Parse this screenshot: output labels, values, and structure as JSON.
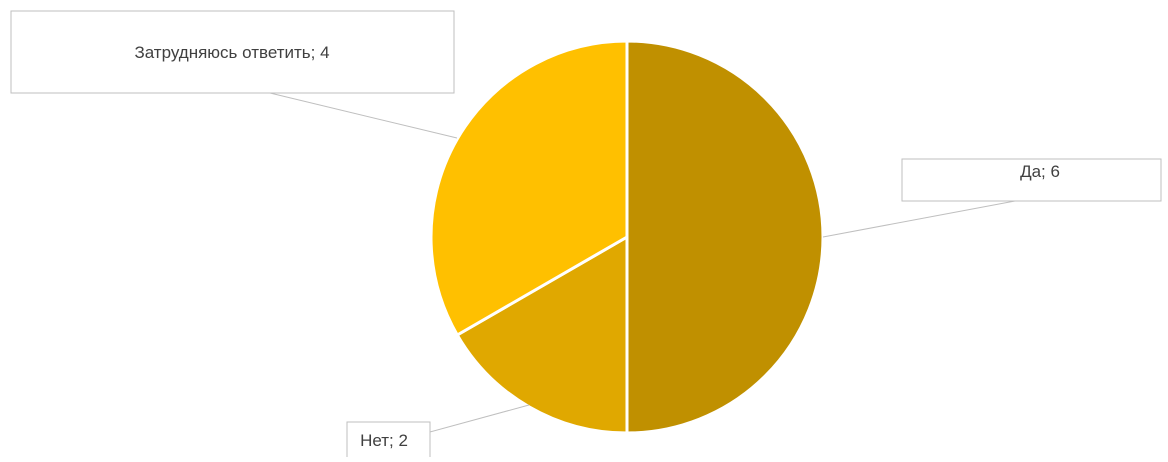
{
  "chart_data": {
    "type": "pie",
    "title": "",
    "legend": "none",
    "slices": [
      {
        "label": "Да",
        "value": 6,
        "color": "#C09000",
        "data_label": "Да; 6"
      },
      {
        "label": "Нет",
        "value": 2,
        "color": "#E0A800",
        "data_label": "Нет; 2"
      },
      {
        "label": "Затрудняюсь ответить",
        "value": 4,
        "color": "#FFC000",
        "data_label": "Затрудняюсь ответить; 4"
      }
    ]
  }
}
